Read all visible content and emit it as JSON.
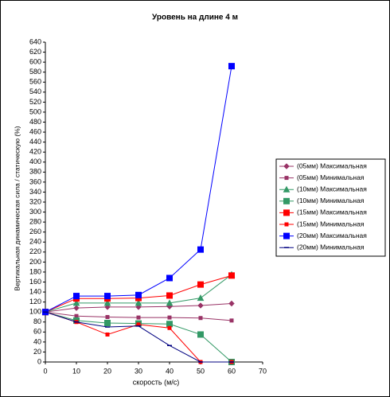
{
  "chart_data": {
    "type": "line",
    "title": "Уровень на длине 4 м",
    "x_label": "скорость (м/с)",
    "y_label": "Вертикальная динамическая сила / статическую (%)",
    "x": [
      0,
      10,
      20,
      30,
      40,
      50,
      60
    ],
    "xlim": [
      0,
      70
    ],
    "xticks": [
      0,
      10,
      20,
      30,
      40,
      50,
      60,
      70
    ],
    "ylim": [
      0,
      640
    ],
    "yticks": [
      0,
      20,
      40,
      60,
      80,
      100,
      120,
      140,
      160,
      180,
      200,
      220,
      240,
      260,
      280,
      300,
      320,
      340,
      360,
      380,
      400,
      420,
      440,
      460,
      480,
      500,
      520,
      540,
      560,
      580,
      600,
      620,
      640
    ],
    "legend": "right",
    "series": [
      {
        "name": "(05мм) Максимальная",
        "color": "#993366",
        "marker": "diamond",
        "values": [
          100,
          108,
          110,
          110,
          111,
          113,
          117
        ]
      },
      {
        "name": "(05мм) Минимальная",
        "color": "#993366",
        "marker": "small-square",
        "values": [
          100,
          92,
          90,
          89,
          89,
          88,
          83
        ]
      },
      {
        "name": "(10мм) Максимальная",
        "color": "#339966",
        "marker": "triangle",
        "values": [
          100,
          118,
          118,
          118,
          118,
          128,
          175
        ]
      },
      {
        "name": "(10мм) Минимальная",
        "color": "#339966",
        "marker": "square",
        "values": [
          100,
          83,
          78,
          77,
          76,
          55,
          0
        ]
      },
      {
        "name": "(15мм) Максимальная",
        "color": "#ff0000",
        "marker": "square",
        "values": [
          100,
          127,
          127,
          128,
          133,
          155,
          173
        ]
      },
      {
        "name": "(15мм) Минимальная",
        "color": "#ff0000",
        "marker": "small-square",
        "values": [
          100,
          80,
          55,
          75,
          68,
          0,
          0
        ]
      },
      {
        "name": "(20мм) Максимальная",
        "color": "#0000ff",
        "marker": "square",
        "values": [
          100,
          132,
          132,
          134,
          168,
          225,
          592
        ]
      },
      {
        "name": "(20мм) Минимальная",
        "color": "#000080",
        "marker": "dash",
        "values": [
          100,
          80,
          70,
          72,
          33,
          0,
          0
        ]
      }
    ]
  }
}
